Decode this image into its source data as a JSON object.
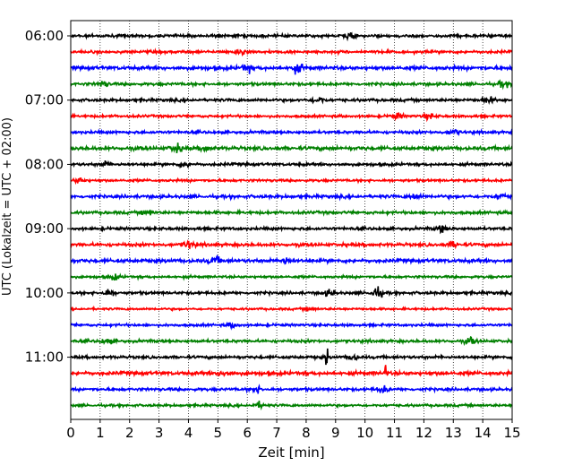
{
  "chart_data": {
    "type": "line",
    "title": "",
    "xlabel": "Zeit  [min]",
    "ylabel": "UTC (Lokalzeit = UTC + 02:00)",
    "xlim": [
      0,
      15
    ],
    "x_ticks": [
      "0",
      "1",
      "2",
      "3",
      "4",
      "5",
      "6",
      "7",
      "8",
      "9",
      "10",
      "11",
      "12",
      "13",
      "14",
      "15"
    ],
    "y_ticks": [
      "06:00",
      "07:00",
      "08:00",
      "09:00",
      "10:00",
      "11:00"
    ],
    "y_tick_trace_index": [
      0,
      4,
      8,
      12,
      16,
      20
    ],
    "trace_minutes": 15,
    "grid": "vertical dotted",
    "colors": [
      "#000000",
      "#ff0000",
      "#0000ff",
      "#008000"
    ],
    "series": [
      {
        "start": "06:00",
        "color": "#000000",
        "amplitude": 0.16,
        "events": [
          {
            "t": 9.5,
            "amp": 0.3
          }
        ]
      },
      {
        "start": "06:15",
        "color": "#ff0000",
        "amplitude": 0.16,
        "events": [
          {
            "t": 5.8,
            "amp": 0.35
          }
        ]
      },
      {
        "start": "06:30",
        "color": "#0000ff",
        "amplitude": 0.2,
        "events": [
          {
            "t": 6.0,
            "amp": 0.4
          },
          {
            "t": 7.7,
            "amp": 0.45
          }
        ]
      },
      {
        "start": "06:45",
        "color": "#008000",
        "amplitude": 0.16,
        "events": [
          {
            "t": 1.1,
            "amp": 0.3
          },
          {
            "t": 14.7,
            "amp": 0.3
          }
        ]
      },
      {
        "start": "07:00",
        "color": "#000000",
        "amplitude": 0.16,
        "events": [
          {
            "t": 8.4,
            "amp": 0.4
          },
          {
            "t": 14.2,
            "amp": 0.35
          }
        ]
      },
      {
        "start": "07:15",
        "color": "#ff0000",
        "amplitude": 0.14,
        "events": [
          {
            "t": 11.1,
            "amp": 0.35
          },
          {
            "t": 12.2,
            "amp": 0.3
          }
        ]
      },
      {
        "start": "07:30",
        "color": "#0000ff",
        "amplitude": 0.16,
        "events": [
          {
            "t": 13.0,
            "amp": 0.3
          }
        ]
      },
      {
        "start": "07:45",
        "color": "#008000",
        "amplitude": 0.2,
        "events": [
          {
            "t": 3.6,
            "amp": 0.45
          },
          {
            "t": 4.6,
            "amp": 0.3
          }
        ]
      },
      {
        "start": "08:00",
        "color": "#000000",
        "amplitude": 0.16,
        "events": [
          {
            "t": 3.9,
            "amp": 0.4
          },
          {
            "t": 1.2,
            "amp": 0.25
          }
        ]
      },
      {
        "start": "08:15",
        "color": "#ff0000",
        "amplitude": 0.14,
        "events": [
          {
            "t": 0.3,
            "amp": 0.3
          }
        ]
      },
      {
        "start": "08:30",
        "color": "#0000ff",
        "amplitude": 0.18,
        "events": [
          {
            "t": 11.7,
            "amp": 0.3
          },
          {
            "t": 14.6,
            "amp": 0.3
          }
        ]
      },
      {
        "start": "08:45",
        "color": "#008000",
        "amplitude": 0.16,
        "events": [
          {
            "t": 2.6,
            "amp": 0.35
          }
        ]
      },
      {
        "start": "09:00",
        "color": "#000000",
        "amplitude": 0.16,
        "events": [
          {
            "t": 12.6,
            "amp": 0.35
          }
        ]
      },
      {
        "start": "09:15",
        "color": "#ff0000",
        "amplitude": 0.18,
        "events": [
          {
            "t": 4.0,
            "amp": 0.4
          },
          {
            "t": 13.0,
            "amp": 0.3
          }
        ]
      },
      {
        "start": "09:30",
        "color": "#0000ff",
        "amplitude": 0.2,
        "events": [
          {
            "t": 4.9,
            "amp": 0.4
          },
          {
            "t": 7.3,
            "amp": 0.35
          }
        ]
      },
      {
        "start": "09:45",
        "color": "#008000",
        "amplitude": 0.14,
        "events": [
          {
            "t": 1.5,
            "amp": 0.3
          }
        ]
      },
      {
        "start": "10:00",
        "color": "#000000",
        "amplitude": 0.16,
        "events": [
          {
            "t": 1.3,
            "amp": 0.4
          },
          {
            "t": 8.8,
            "amp": 0.35
          },
          {
            "t": 10.4,
            "amp": 0.6
          }
        ]
      },
      {
        "start": "10:15",
        "color": "#ff0000",
        "amplitude": 0.12,
        "events": [
          {
            "t": 8.1,
            "amp": 0.2
          }
        ]
      },
      {
        "start": "10:30",
        "color": "#0000ff",
        "amplitude": 0.14,
        "events": [
          {
            "t": 5.5,
            "amp": 0.25
          }
        ]
      },
      {
        "start": "10:45",
        "color": "#008000",
        "amplitude": 0.16,
        "events": [
          {
            "t": 1.2,
            "amp": 0.3
          },
          {
            "t": 13.6,
            "amp": 0.4
          }
        ]
      },
      {
        "start": "11:00",
        "color": "#000000",
        "amplitude": 0.16,
        "events": [
          {
            "t": 8.7,
            "amp": 2.4,
            "spike": true
          },
          {
            "t": 9.6,
            "amp": 0.3
          }
        ]
      },
      {
        "start": "11:15",
        "color": "#ff0000",
        "amplitude": 0.2,
        "events": [
          {
            "t": 10.7,
            "amp": 1.9,
            "spike": true
          },
          {
            "t": 5.2,
            "amp": 0.35
          }
        ]
      },
      {
        "start": "11:30",
        "color": "#0000ff",
        "amplitude": 0.16,
        "events": [
          {
            "t": 6.3,
            "amp": 0.35
          },
          {
            "t": 10.6,
            "amp": 0.35
          }
        ]
      },
      {
        "start": "11:45",
        "color": "#008000",
        "amplitude": 0.14,
        "events": [
          {
            "t": 6.4,
            "amp": 0.3
          }
        ]
      }
    ]
  }
}
